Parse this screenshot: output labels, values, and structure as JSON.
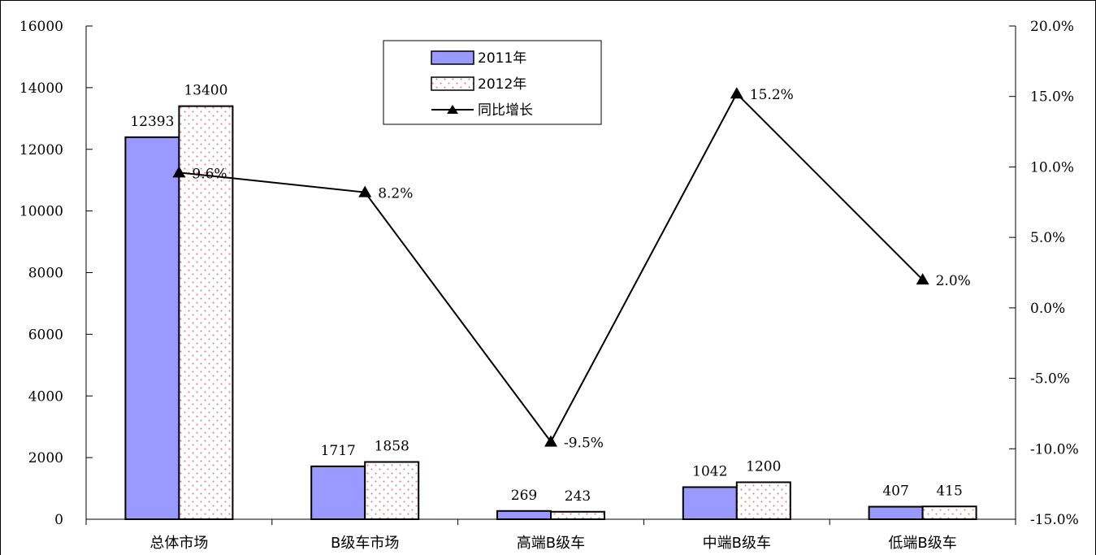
{
  "chart_data": {
    "type": "bar",
    "categories": [
      "总体市场",
      "B级车市场",
      "高端B级车",
      "中端B级车",
      "低端B级车"
    ],
    "series": [
      {
        "name": "2011年",
        "type": "bar",
        "axis": "left",
        "values": [
          12393,
          1717,
          269,
          1042,
          407
        ],
        "labels": [
          "12393",
          "1717",
          "269",
          "1042",
          "407"
        ],
        "color": "#9999ff"
      },
      {
        "name": "2012年",
        "type": "bar",
        "axis": "left",
        "values": [
          13400,
          1858,
          243,
          1200,
          415
        ],
        "labels": [
          "13400",
          "1858",
          "243",
          "1200",
          "415"
        ],
        "color": "#ffffff",
        "dot_color": "#e07a7a"
      },
      {
        "name": "同比增长",
        "type": "line",
        "axis": "right",
        "values": [
          9.6,
          8.2,
          -9.5,
          15.2,
          2.0
        ],
        "labels": [
          "9.6%",
          "8.2%",
          "-9.5%",
          "15.2%",
          "2.0%"
        ],
        "color": "#000000"
      }
    ],
    "y_left": {
      "min": 0,
      "max": 16000,
      "ticks": [
        "0",
        "2000",
        "4000",
        "6000",
        "8000",
        "10000",
        "12000",
        "14000",
        "16000"
      ]
    },
    "y_right": {
      "min": -15,
      "max": 20,
      "ticks": [
        "-15.0%",
        "-10.0%",
        "-5.0%",
        "0.0%",
        "5.0%",
        "10.0%",
        "15.0%",
        "20.0%"
      ]
    },
    "legend": {
      "position": "top-center",
      "items": [
        "2011年",
        "2012年",
        "同比增长"
      ]
    },
    "grid": false
  }
}
